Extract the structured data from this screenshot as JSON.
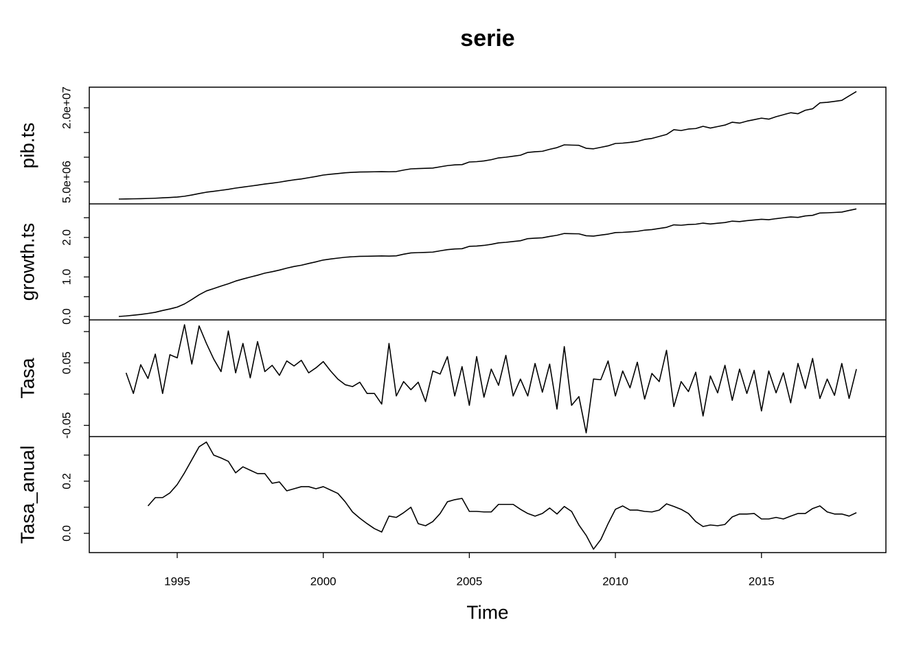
{
  "chart_data": {
    "type": "line",
    "title": "serie",
    "xlabel": "Time",
    "xlim": [
      1991.99,
      2019.26
    ],
    "xticks": [
      1995,
      2000,
      2005,
      2010,
      2015
    ],
    "x": [
      1993,
      1993.25,
      1993.5,
      1993.75,
      1994,
      1994.25,
      1994.5,
      1994.75,
      1995,
      1995.25,
      1995.5,
      1995.75,
      1996,
      1996.25,
      1996.5,
      1996.75,
      1997,
      1997.25,
      1997.5,
      1997.75,
      1998,
      1998.25,
      1998.5,
      1998.75,
      1999,
      1999.25,
      1999.5,
      1999.75,
      2000,
      2000.25,
      2000.5,
      2000.75,
      2001,
      2001.25,
      2001.5,
      2001.75,
      2002,
      2002.25,
      2002.5,
      2002.75,
      2003,
      2003.25,
      2003.5,
      2003.75,
      2004,
      2004.25,
      2004.5,
      2004.75,
      2005,
      2005.25,
      2005.5,
      2005.75,
      2006,
      2006.25,
      2006.5,
      2006.75,
      2007,
      2007.25,
      2007.5,
      2007.75,
      2008,
      2008.25,
      2008.5,
      2008.75,
      2009,
      2009.25,
      2009.5,
      2009.75,
      2010,
      2010.25,
      2010.5,
      2010.75,
      2011,
      2011.25,
      2011.5,
      2011.75,
      2012,
      2012.25,
      2012.5,
      2012.75,
      2013,
      2013.25,
      2013.5,
      2013.75,
      2014,
      2014.25,
      2014.5,
      2014.75,
      2015,
      2015.25,
      2015.5,
      2015.75,
      2016,
      2016.25,
      2016.5,
      2016.75,
      2017,
      2017.25,
      2017.5,
      2017.75,
      2018,
      2018.25
    ],
    "color": "#000000",
    "panels": [
      {
        "ylabel": "pib.ts",
        "ylim": [
          556000,
          24170000
        ],
        "yticks": [
          {
            "value": 5000000,
            "label": "5.0e+06"
          },
          {
            "value": 10000000,
            "label": null
          },
          {
            "value": 15000000,
            "label": null
          },
          {
            "value": 20000000,
            "label": "2.0e+07"
          }
        ],
        "values": [
          1530000,
          1550000,
          1580000,
          1610000,
          1650000,
          1700000,
          1780000,
          1850000,
          1940000,
          2100000,
          2350000,
          2650000,
          2920000,
          3100000,
          3300000,
          3500000,
          3750000,
          3950000,
          4150000,
          4350000,
          4580000,
          4750000,
          4950000,
          5200000,
          5420000,
          5600000,
          5850000,
          6100000,
          6390000,
          6550000,
          6700000,
          6850000,
          6940000,
          7000000,
          7020000,
          7050000,
          7080000,
          7050000,
          7100000,
          7400000,
          7640000,
          7700000,
          7750000,
          7800000,
          8060000,
          8300000,
          8450000,
          8500000,
          9030000,
          9100000,
          9250000,
          9500000,
          9860000,
          10000000,
          10200000,
          10400000,
          10970000,
          11100000,
          11200000,
          11600000,
          11940000,
          12500000,
          12450000,
          12400000,
          11800000,
          11700000,
          12000000,
          12300000,
          12780000,
          12850000,
          13000000,
          13200000,
          13600000,
          13800000,
          14200000,
          14600000,
          15560000,
          15400000,
          15700000,
          15800000,
          16250000,
          15900000,
          16200000,
          16500000,
          17080000,
          16900000,
          17300000,
          17600000,
          17900000,
          17700000,
          18200000,
          18600000,
          19000000,
          18800000,
          19500000,
          19800000,
          21000000,
          21100000,
          21300000,
          21500000,
          22400000,
          23300000
        ]
      },
      {
        "ylabel": "growth.ts",
        "ylim": [
          -0.087,
          2.85
        ],
        "yticks": [
          {
            "value": 0,
            "label": "0.0"
          },
          {
            "value": 0.5,
            "label": null
          },
          {
            "value": 1,
            "label": "1.0"
          },
          {
            "value": 1.5,
            "label": null
          },
          {
            "value": 2,
            "label": "2.0"
          },
          {
            "value": 2.5,
            "label": null
          }
        ],
        "values": [
          0,
          0.013,
          0.032,
          0.051,
          0.076,
          0.105,
          0.151,
          0.19,
          0.237,
          0.317,
          0.429,
          0.549,
          0.646,
          0.706,
          0.769,
          0.828,
          0.896,
          0.948,
          0.997,
          1.044,
          1.097,
          1.133,
          1.174,
          1.223,
          1.265,
          1.297,
          1.341,
          1.383,
          1.429,
          1.454,
          1.477,
          1.499,
          1.512,
          1.521,
          1.523,
          1.528,
          1.532,
          1.528,
          1.535,
          1.576,
          1.608,
          1.616,
          1.622,
          1.629,
          1.662,
          1.691,
          1.709,
          1.715,
          1.775,
          1.783,
          1.799,
          1.826,
          1.863,
          1.877,
          1.897,
          1.917,
          1.97,
          1.982,
          1.991,
          2.026,
          2.055,
          2.1,
          2.096,
          2.092,
          2.043,
          2.034,
          2.06,
          2.085,
          2.123,
          2.129,
          2.14,
          2.155,
          2.185,
          2.199,
          2.228,
          2.256,
          2.319,
          2.309,
          2.328,
          2.335,
          2.363,
          2.341,
          2.36,
          2.378,
          2.413,
          2.402,
          2.426,
          2.443,
          2.46,
          2.449,
          2.476,
          2.498,
          2.519,
          2.508,
          2.545,
          2.56,
          2.619,
          2.624,
          2.633,
          2.643,
          2.684,
          2.723
        ]
      },
      {
        "ylabel": "Tasa",
        "ylim": [
          -0.068,
          0.1187
        ],
        "yticks": [
          -0.05,
          {
            "value": 0,
            "label": null
          },
          0.05,
          {
            "value": 0.1,
            "label": null
          }
        ],
        "values": [
          null,
          0.034,
          0.001,
          0.047,
          0.025,
          0.064,
          0.001,
          0.063,
          0.058,
          0.111,
          0.048,
          0.109,
          0.081,
          0.056,
          0.036,
          0.101,
          0.034,
          0.081,
          0.026,
          0.084,
          0.036,
          0.046,
          0.03,
          0.053,
          0.045,
          0.054,
          0.034,
          0.042,
          0.052,
          0.037,
          0.024,
          0.015,
          0.012,
          0.019,
          0.001,
          0.001,
          -0.016,
          0.081,
          -0.003,
          0.02,
          0.007,
          0.019,
          -0.012,
          0.037,
          0.032,
          0.06,
          -0.003,
          0.044,
          -0.018,
          0.06,
          -0.005,
          0.04,
          0.014,
          0.062,
          -0.003,
          0.024,
          -0.003,
          0.049,
          0.003,
          0.048,
          -0.024,
          0.076,
          -0.018,
          -0.004,
          -0.062,
          0.024,
          0.023,
          0.053,
          -0.003,
          0.037,
          0.01,
          0.051,
          -0.008,
          0.033,
          0.02,
          0.07,
          -0.02,
          0.02,
          0.004,
          0.035,
          -0.035,
          0.029,
          0.002,
          0.046,
          -0.01,
          0.04,
          0.001,
          0.038,
          -0.027,
          0.037,
          0.002,
          0.034,
          -0.014,
          0.049,
          0.009,
          0.057,
          -0.007,
          0.024,
          -0.002,
          0.049,
          -0.007,
          0.04
        ]
      },
      {
        "ylabel": "Tasa_anual",
        "ylim": [
          -0.074,
          0.371
        ],
        "yticks": [
          {
            "value": 0,
            "label": "0.0"
          },
          {
            "value": 0.1,
            "label": null
          },
          0.2,
          {
            "value": 0.3,
            "label": null
          }
        ],
        "values": [
          null,
          null,
          null,
          null,
          0.105,
          0.137,
          0.137,
          0.155,
          0.187,
          0.232,
          0.282,
          0.332,
          0.35,
          0.3,
          0.289,
          0.276,
          0.232,
          0.255,
          0.242,
          0.229,
          0.229,
          0.192,
          0.197,
          0.163,
          0.171,
          0.179,
          0.179,
          0.171,
          0.179,
          0.166,
          0.153,
          0.121,
          0.082,
          0.058,
          0.037,
          0.018,
          0.005,
          0.066,
          0.061,
          0.079,
          0.1,
          0.037,
          0.029,
          0.045,
          0.076,
          0.121,
          0.129,
          0.134,
          0.084,
          0.084,
          0.082,
          0.082,
          0.111,
          0.111,
          0.111,
          0.092,
          0.076,
          0.066,
          0.076,
          0.097,
          0.074,
          0.103,
          0.084,
          0.032,
          -0.008,
          -0.061,
          -0.024,
          0.037,
          0.092,
          0.105,
          0.089,
          0.089,
          0.084,
          0.082,
          0.089,
          0.113,
          0.103,
          0.092,
          0.076,
          0.045,
          0.026,
          0.032,
          0.029,
          0.034,
          0.063,
          0.074,
          0.074,
          0.076,
          0.055,
          0.055,
          0.061,
          0.055,
          0.066,
          0.076,
          0.076,
          0.095,
          0.105,
          0.082,
          0.074,
          0.074,
          0.066,
          0.079
        ]
      }
    ]
  }
}
